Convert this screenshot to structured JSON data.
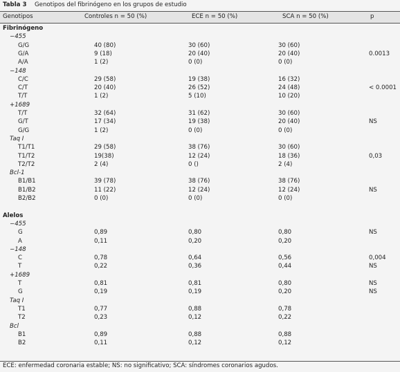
{
  "caption": {
    "number": "Tabla 3",
    "title": "Genotipos del fibrinógeno en los grupos de estudio"
  },
  "table": {
    "header": [
      "Genotipos",
      "Controles n = 50 (%)",
      "ECE n = 50 (%)",
      "SCA n = 50 (%)",
      "p"
    ],
    "sections": [
      {
        "title": "Fibrinógeno",
        "groups": [
          {
            "label": "−455",
            "rows": [
              [
                "G/G",
                "40 (80)",
                "30 (60)",
                "30 (60)"
              ],
              [
                "G/A",
                "9 (18)",
                "20 (40)",
                "20 (40)",
                "0.0013"
              ],
              [
                "A/A",
                "1 (2)",
                "0 (0)",
                "0 (0)"
              ]
            ]
          },
          {
            "label": "−148",
            "rows": [
              [
                "C/C",
                "29 (58)",
                "19 (38)",
                "16 (32)"
              ],
              [
                "C/T",
                "20 (40)",
                "26 (52)",
                "24 (48)",
                "< 0.0001"
              ],
              [
                "T/T",
                "1 (2)",
                "5 (10)",
                "10 (20)"
              ]
            ]
          },
          {
            "label": "+1689",
            "rows": [
              [
                "T/T",
                "32 (64)",
                "31 (62)",
                "30 (60)"
              ],
              [
                "G/T",
                "17 (34)",
                "19 (38)",
                "20 (40)",
                "NS"
              ],
              [
                "G/G",
                "1 (2)",
                "0 (0)",
                "0 (0)"
              ]
            ]
          },
          {
            "label": "Taq I",
            "rows": [
              [
                "T1/T1",
                "29 (58)",
                "38 (76)",
                "30 (60)"
              ],
              [
                "T1/T2",
                "19(38)",
                "12 (24)",
                "18 (36)",
                "0,03"
              ],
              [
                "T2/T2",
                "2 (4)",
                "0 ()",
                "2 (4)"
              ]
            ]
          },
          {
            "label": "Bcl-1",
            "rows": [
              [
                "B1/B1",
                "39 (78)",
                "38 (76)",
                "38 (76)"
              ],
              [
                "B1/B2",
                "11 (22)",
                "12 (24)",
                "12 (24)",
                "NS"
              ],
              [
                "B2/B2",
                "0 (0)",
                "0 (0)",
                "0 (0)"
              ]
            ]
          }
        ]
      },
      {
        "title": "Alelos",
        "groups": [
          {
            "label": "−455",
            "rows": [
              [
                "G",
                "0,89",
                "0,80",
                "0,80",
                "NS"
              ],
              [
                "A",
                "0,11",
                "0,20",
                "0,20"
              ]
            ]
          },
          {
            "label": "−148",
            "rows": [
              [
                "C",
                "0,78",
                "0,64",
                "0,56",
                "0,004"
              ],
              [
                "T",
                "0,22",
                "0,36",
                "0,44",
                "NS"
              ]
            ]
          },
          {
            "label": "+1689",
            "rows": [
              [
                "T",
                "0,81",
                "0,81",
                "0,80",
                "NS"
              ],
              [
                "G",
                "0,19",
                "0,19",
                "0,20",
                "NS"
              ]
            ]
          },
          {
            "label": "Taq I",
            "rows": [
              [
                "T1",
                "0,77",
                "0,88",
                "0,78"
              ],
              [
                "T2",
                "0,23",
                "0,12",
                "0,22"
              ]
            ]
          },
          {
            "label": "Bcl",
            "rows": [
              [
                "B1",
                "0,89",
                "0,88",
                "0,88"
              ],
              [
                "B2",
                "0,11",
                "0,12",
                "0,12"
              ]
            ]
          }
        ]
      }
    ]
  },
  "footnote": "ECE: enfermedad coronaria estable; NS: no significativo; SCA: síndromes coronarios agudos."
}
